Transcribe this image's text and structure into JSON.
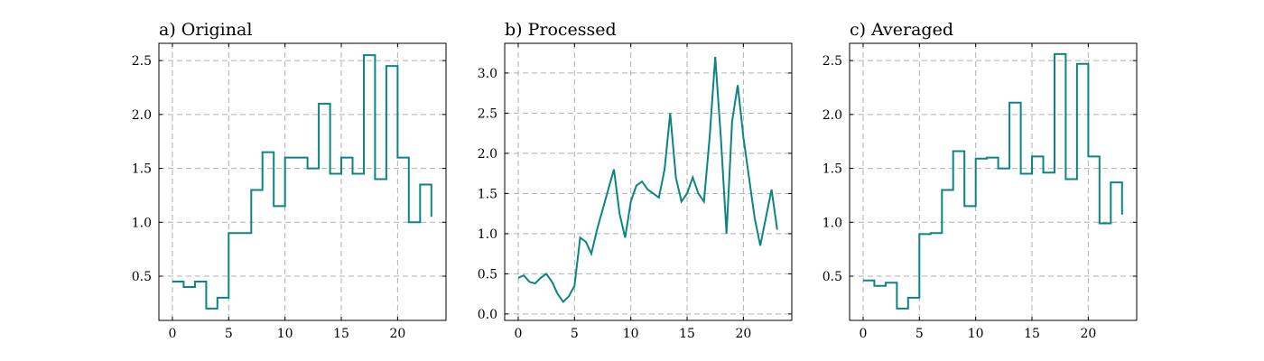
{
  "line_color": "#0b8582",
  "chart_data": [
    {
      "type": "line",
      "title": "a) Original",
      "step": true,
      "xlim": [
        -1.2,
        24.3
      ],
      "ylim": [
        0.09,
        2.66
      ],
      "xticks": [
        0,
        5,
        10,
        15,
        20
      ],
      "yticks": [
        0.5,
        1.0,
        1.5,
        2.0,
        2.5
      ],
      "ytick_labels": [
        "0.5",
        "1.0",
        "1.5",
        "2.0",
        "2.5"
      ],
      "grid": true,
      "x": [
        0,
        1,
        2,
        3,
        4,
        5,
        6,
        7,
        8,
        9,
        10,
        11,
        12,
        13,
        14,
        15,
        16,
        17,
        18,
        19,
        20,
        21,
        22,
        23
      ],
      "y": [
        0.45,
        0.4,
        0.45,
        0.2,
        0.3,
        0.9,
        0.9,
        1.3,
        1.65,
        1.15,
        1.6,
        1.6,
        1.5,
        2.1,
        1.45,
        1.6,
        1.45,
        2.55,
        1.4,
        2.45,
        1.6,
        1.0,
        1.35,
        1.05
      ]
    },
    {
      "type": "line",
      "title": "b) Processed",
      "step": false,
      "xlim": [
        -1.2,
        24.3
      ],
      "ylim": [
        -0.08,
        3.37
      ],
      "xticks": [
        0,
        5,
        10,
        15,
        20
      ],
      "yticks": [
        0.0,
        0.5,
        1.0,
        1.5,
        2.0,
        2.5,
        3.0
      ],
      "ytick_labels": [
        "0.0",
        "0.5",
        "1.0",
        "1.5",
        "2.0",
        "2.5",
        "3.0"
      ],
      "grid": true,
      "x": [
        0,
        0.5,
        1,
        1.5,
        2,
        2.5,
        3,
        3.5,
        4,
        4.5,
        5,
        5.5,
        6,
        6.5,
        7,
        7.5,
        8,
        8.5,
        9,
        9.5,
        10,
        10.5,
        11,
        11.5,
        12,
        12.5,
        13,
        13.5,
        14,
        14.5,
        15,
        15.5,
        16,
        16.5,
        17,
        17.5,
        18,
        18.5,
        19,
        19.5,
        20,
        20.5,
        21,
        21.5,
        22,
        22.5,
        23
      ],
      "y": [
        0.45,
        0.48,
        0.4,
        0.38,
        0.45,
        0.5,
        0.4,
        0.25,
        0.15,
        0.22,
        0.35,
        0.95,
        0.9,
        0.75,
        1.05,
        1.3,
        1.55,
        1.8,
        1.25,
        0.95,
        1.4,
        1.6,
        1.65,
        1.55,
        1.5,
        1.45,
        1.8,
        2.5,
        1.7,
        1.4,
        1.5,
        1.7,
        1.5,
        1.4,
        2.2,
        3.2,
        2.2,
        1.0,
        2.4,
        2.85,
        2.2,
        1.7,
        1.2,
        0.85,
        1.2,
        1.55,
        1.05
      ]
    },
    {
      "type": "line",
      "title": "c) Averaged",
      "step": true,
      "xlim": [
        -1.2,
        24.3
      ],
      "ylim": [
        0.09,
        2.66
      ],
      "xticks": [
        0,
        5,
        10,
        15,
        20
      ],
      "yticks": [
        0.5,
        1.0,
        1.5,
        2.0,
        2.5
      ],
      "ytick_labels": [
        "0.5",
        "1.0",
        "1.5",
        "2.0",
        "2.5"
      ],
      "grid": true,
      "x": [
        0,
        1,
        2,
        3,
        4,
        5,
        6,
        7,
        8,
        9,
        10,
        11,
        12,
        13,
        14,
        15,
        16,
        17,
        18,
        19,
        20,
        21,
        22,
        23
      ],
      "y": [
        0.46,
        0.41,
        0.44,
        0.2,
        0.3,
        0.89,
        0.9,
        1.3,
        1.66,
        1.15,
        1.59,
        1.6,
        1.5,
        2.11,
        1.45,
        1.61,
        1.46,
        2.56,
        1.4,
        2.47,
        1.61,
        0.99,
        1.37,
        1.07
      ]
    }
  ]
}
